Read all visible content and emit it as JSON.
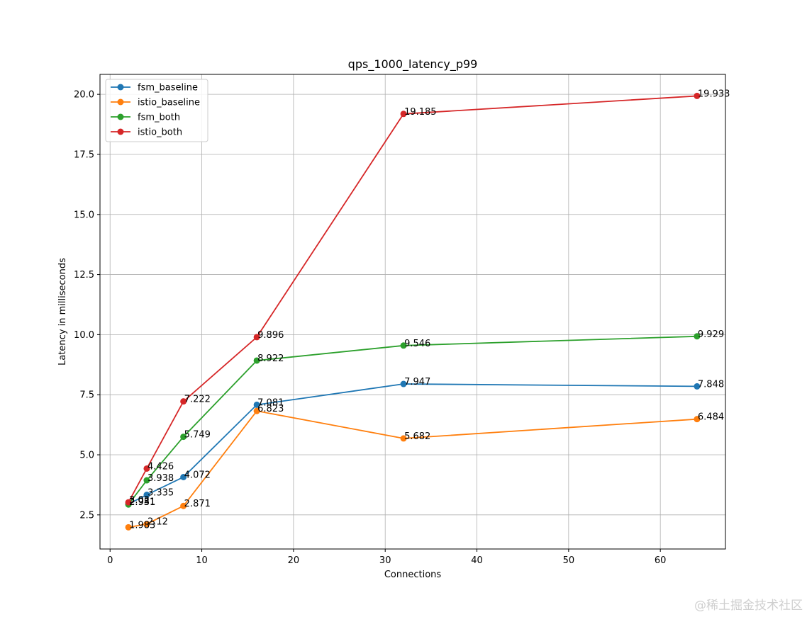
{
  "chart_data": {
    "type": "line",
    "title": "qps_1000_latency_p99",
    "xlabel": "Connections",
    "ylabel": "Latency in milliseconds",
    "xlim": [
      -1.1,
      67.1
    ],
    "ylim": [
      1.08,
      20.83
    ],
    "xticks": [
      0,
      10,
      20,
      30,
      40,
      50,
      60
    ],
    "yticks": [
      2.5,
      5.0,
      7.5,
      10.0,
      12.5,
      15.0,
      17.5,
      20.0
    ],
    "xtick_labels": [
      "0",
      "10",
      "20",
      "30",
      "40",
      "50",
      "60"
    ],
    "ytick_labels": [
      "2.5",
      "5.0",
      "7.5",
      "10.0",
      "12.5",
      "15.0",
      "17.5",
      "20.0"
    ],
    "grid": true,
    "legend_position": "top-left",
    "x": [
      2,
      4,
      8,
      16,
      32,
      64
    ],
    "series": [
      {
        "name": "fsm_baseline",
        "color": "#1f77b4",
        "values": [
          2.951,
          3.335,
          4.072,
          7.081,
          7.947,
          7.848
        ],
        "labels": [
          "2.951",
          "3.335",
          "4.072",
          "7.081",
          "7.947",
          "7.848"
        ]
      },
      {
        "name": "istio_baseline",
        "color": "#ff7f0e",
        "values": [
          1.983,
          2.12,
          2.871,
          6.823,
          5.682,
          6.484
        ],
        "labels": [
          "1.983",
          "2.12",
          "2.871",
          "6.823",
          "5.682",
          "6.484"
        ]
      },
      {
        "name": "fsm_both",
        "color": "#2ca02c",
        "values": [
          2.931,
          3.938,
          5.749,
          8.922,
          9.546,
          9.929
        ],
        "labels": [
          "2.931",
          "3.938",
          "5.749",
          "8.922",
          "9.546",
          "9.929"
        ]
      },
      {
        "name": "istio_both",
        "color": "#d62728",
        "values": [
          3.02,
          4.426,
          7.222,
          9.896,
          19.185,
          19.933
        ],
        "labels": [
          "3.02",
          "4.426",
          "7.222",
          "9.896",
          "19.185",
          "19.933"
        ]
      }
    ]
  },
  "watermark": "@稀土掘金技术社区"
}
